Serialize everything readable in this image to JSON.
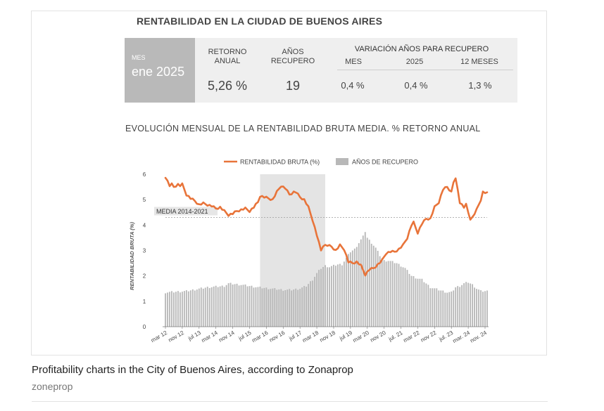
{
  "figure": {
    "title": "RENTABILIDAD EN LA CIUDAD DE BUENOS AIRES",
    "caption": "Profitability charts in the City of Buenos Aires, according to Zonaprop",
    "source": "zoneprop"
  },
  "summary": {
    "month_label": "MES",
    "month_value": "ene 2025",
    "retorno_header_1": "RETORNO",
    "retorno_header_2": "ANUAL",
    "retorno_value": "5,26 %",
    "anos_header_1": "AÑOS",
    "anos_header_2": "RECUPERO",
    "anos_value": "19",
    "variation_title": "VARIACIÓN AÑOS PARA RECUPERO",
    "var_mes_label": "MES",
    "var_mes_value": "0,4 %",
    "var_2025_label": "2025",
    "var_2025_value": "0,4 %",
    "var_12m_label": "12 MESES",
    "var_12m_value": "1,3 %"
  },
  "chart_data": {
    "type": "line",
    "title": "EVOLUCIÓN MENSUAL DE LA RENTABILIDAD BRUTA MEDIA. % RETORNO ANUAL",
    "ylabel": "RENTABILIDAD BRUTA (%)",
    "ylim": [
      0,
      6
    ],
    "yticks": [
      "0",
      "1",
      "2",
      "3",
      "4",
      "5",
      "6"
    ],
    "xlim": [
      0,
      153
    ],
    "x_tick_labels": [
      "mar 12",
      "nov 12",
      "jul 13",
      "mar 14",
      "nov 14",
      "jul 15",
      "mar 16",
      "nov 16",
      "jul 17",
      "mar 18",
      "nov 18",
      "jul 19",
      "mar 20",
      "nov 20",
      "jul. 21",
      "mar 22",
      "nov 22",
      "jul. 23",
      "mar. 24",
      "nov. 24"
    ],
    "x_tick_positions": [
      0,
      8,
      16,
      24,
      32,
      40,
      48,
      56,
      64,
      72,
      80,
      88,
      96,
      104,
      112,
      120,
      128,
      136,
      144,
      152
    ],
    "legend": [
      "RENTABILIDAD BRUTA (%)",
      "AÑOS DE RECUPERO"
    ],
    "reference_line": {
      "label": "MEDIA 2014-2021",
      "value": 4.3
    },
    "shaded_region": {
      "x_start": 45,
      "x_end": 76
    },
    "colors": {
      "line": "#e8743a",
      "bars": "#b8b8b8",
      "shade": "#e4e4e4"
    },
    "line_anchors": [
      [
        0,
        5.9
      ],
      [
        2,
        5.55
      ],
      [
        3,
        5.6
      ],
      [
        4,
        5.5
      ],
      [
        6,
        5.6
      ],
      [
        7,
        5.55
      ],
      [
        8,
        5.6
      ],
      [
        10,
        5.2
      ],
      [
        12,
        5.05
      ],
      [
        14,
        4.95
      ],
      [
        16,
        4.8
      ],
      [
        18,
        4.85
      ],
      [
        20,
        4.8
      ],
      [
        22,
        4.75
      ],
      [
        24,
        4.65
      ],
      [
        26,
        4.7
      ],
      [
        28,
        4.55
      ],
      [
        30,
        4.4
      ],
      [
        32,
        4.45
      ],
      [
        34,
        4.55
      ],
      [
        36,
        4.6
      ],
      [
        38,
        4.65
      ],
      [
        40,
        4.55
      ],
      [
        42,
        4.7
      ],
      [
        44,
        4.9
      ],
      [
        45,
        5.15
      ],
      [
        47,
        5.1
      ],
      [
        49,
        5.05
      ],
      [
        51,
        5.0
      ],
      [
        53,
        5.3
      ],
      [
        55,
        5.55
      ],
      [
        57,
        5.45
      ],
      [
        59,
        5.2
      ],
      [
        61,
        5.3
      ],
      [
        62,
        5.3
      ],
      [
        64,
        5.1
      ],
      [
        66,
        5.0
      ],
      [
        68,
        4.7
      ],
      [
        70,
        4.2
      ],
      [
        72,
        3.6
      ],
      [
        74,
        3.0
      ],
      [
        75,
        3.2
      ],
      [
        77,
        3.2
      ],
      [
        79,
        3.15
      ],
      [
        81,
        3.0
      ],
      [
        83,
        3.2
      ],
      [
        85,
        3.05
      ],
      [
        87,
        2.55
      ],
      [
        89,
        2.5
      ],
      [
        91,
        2.55
      ],
      [
        93,
        2.4
      ],
      [
        95,
        2.05
      ],
      [
        97,
        2.25
      ],
      [
        99,
        2.3
      ],
      [
        101,
        2.45
      ],
      [
        103,
        2.6
      ],
      [
        105,
        2.9
      ],
      [
        107,
        2.95
      ],
      [
        109,
        2.95
      ],
      [
        111,
        3.05
      ],
      [
        113,
        3.2
      ],
      [
        115,
        3.5
      ],
      [
        117,
        4.0
      ],
      [
        118,
        4.1
      ],
      [
        120,
        3.7
      ],
      [
        122,
        4.05
      ],
      [
        124,
        4.25
      ],
      [
        126,
        4.25
      ],
      [
        128,
        4.7
      ],
      [
        130,
        4.9
      ],
      [
        132,
        5.4
      ],
      [
        134,
        5.5
      ],
      [
        136,
        5.3
      ],
      [
        137,
        5.7
      ],
      [
        138,
        5.8
      ],
      [
        139,
        5.4
      ],
      [
        140,
        4.9
      ],
      [
        142,
        4.7
      ],
      [
        143,
        4.8
      ],
      [
        144,
        4.5
      ],
      [
        145,
        4.25
      ],
      [
        146,
        4.3
      ],
      [
        148,
        4.6
      ],
      [
        150,
        5.0
      ],
      [
        151,
        5.3
      ],
      [
        153,
        5.25
      ]
    ],
    "bar_anchors": [
      [
        0,
        1.35
      ],
      [
        10,
        1.4
      ],
      [
        20,
        1.55
      ],
      [
        28,
        1.6
      ],
      [
        30,
        1.7
      ],
      [
        36,
        1.65
      ],
      [
        44,
        1.55
      ],
      [
        50,
        1.5
      ],
      [
        56,
        1.45
      ],
      [
        60,
        1.45
      ],
      [
        64,
        1.5
      ],
      [
        67,
        1.6
      ],
      [
        70,
        1.85
      ],
      [
        72,
        2.1
      ],
      [
        74,
        2.3
      ],
      [
        76,
        2.4
      ],
      [
        78,
        2.35
      ],
      [
        82,
        2.45
      ],
      [
        84,
        2.45
      ],
      [
        86,
        2.7
      ],
      [
        88,
        2.95
      ],
      [
        90,
        3.05
      ],
      [
        92,
        3.3
      ],
      [
        94,
        3.55
      ],
      [
        95,
        3.75
      ],
      [
        96,
        3.5
      ],
      [
        98,
        3.3
      ],
      [
        100,
        3.1
      ],
      [
        102,
        2.8
      ],
      [
        104,
        2.6
      ],
      [
        106,
        2.6
      ],
      [
        110,
        2.5
      ],
      [
        114,
        2.3
      ],
      [
        117,
        2.0
      ],
      [
        120,
        1.9
      ],
      [
        122,
        1.85
      ],
      [
        126,
        1.55
      ],
      [
        130,
        1.45
      ],
      [
        134,
        1.35
      ],
      [
        136,
        1.35
      ],
      [
        138,
        1.55
      ],
      [
        140,
        1.6
      ],
      [
        142,
        1.7
      ],
      [
        144,
        1.75
      ],
      [
        146,
        1.65
      ],
      [
        148,
        1.5
      ],
      [
        150,
        1.4
      ],
      [
        153,
        1.4
      ]
    ]
  }
}
